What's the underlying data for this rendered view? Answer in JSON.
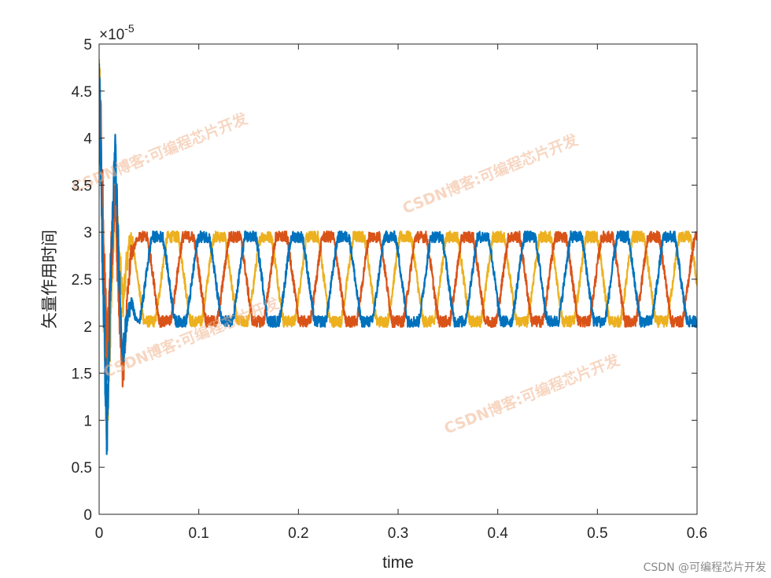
{
  "chart_data": {
    "type": "line",
    "xlabel": "time",
    "ylabel": "矢量作用时间",
    "y_exponent_label": "×10",
    "y_exponent_power": "-5",
    "xlim": [
      0,
      0.6
    ],
    "ylim": [
      0,
      5
    ],
    "x_ticks": [
      "0",
      "0.1",
      "0.2",
      "0.3",
      "0.4",
      "0.5",
      "0.6"
    ],
    "y_ticks": [
      "0",
      "0.5",
      "1",
      "1.5",
      "2",
      "2.5",
      "3",
      "3.5",
      "4",
      "4.5",
      "5"
    ],
    "grid": false,
    "series_colors": [
      "#0072BD",
      "#D95319",
      "#EDB120"
    ],
    "steady_state": {
      "min": 2.05,
      "max": 2.95,
      "period": 0.0467
    },
    "series": [
      {
        "phase_deg": 0
      },
      {
        "phase_deg": 120
      },
      {
        "phase_deg": 240
      }
    ]
  },
  "watermarks": [
    "CSDN博客:可编程芯片开发",
    "CSDN博客:可编程芯片开发",
    "CSDN博客:可编程芯片开发",
    "CSDN博客:可编程芯片开发"
  ],
  "credit": "CSDN @可编程芯片开发"
}
